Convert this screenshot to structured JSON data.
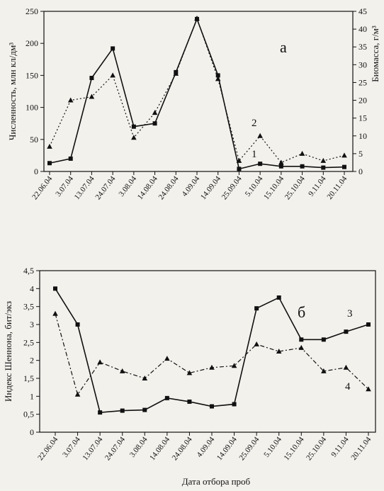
{
  "chart_data": [
    {
      "type": "line",
      "panel_label": "а",
      "categories": [
        "22.06.04",
        "3.07.04",
        "13.07.04",
        "24.07.04",
        "3.08.04",
        "14.08.04",
        "24.08.04",
        "4.09.04",
        "14.09.04",
        "25.09.04",
        "5.10.04",
        "15.10.04",
        "25.10.04",
        "9.11.04",
        "20.11.04"
      ],
      "ylabel": "Численность, млн кл/дм³",
      "y2label": "Биомасса, г/м³",
      "ylim": [
        0,
        250
      ],
      "y2lim": [
        0,
        45
      ],
      "yticks": [
        "0",
        "50",
        "100",
        "150",
        "200",
        "250"
      ],
      "y2ticks": [
        "0",
        "5",
        "10",
        "15",
        "20",
        "25",
        "30",
        "35",
        "40",
        "45"
      ],
      "series": [
        {
          "name": "1",
          "axis": "left",
          "style": "solid",
          "marker": "square",
          "values": [
            13,
            20,
            146,
            192,
            70,
            75,
            155,
            238,
            150,
            4,
            12,
            8,
            8,
            6,
            7
          ]
        },
        {
          "name": "2",
          "axis": "right",
          "style": "dotted",
          "marker": "triangle",
          "values": [
            7,
            20,
            21,
            27,
            9.5,
            16.5,
            27.5,
            43,
            26,
            3,
            10,
            2.5,
            5,
            3,
            4.5
          ]
        }
      ]
    },
    {
      "type": "line",
      "panel_label": "б",
      "categories": [
        "22.06.04",
        "3.07.04",
        "13.07.04",
        "24.07.04",
        "3.08.04",
        "14.08.04",
        "24.08.04",
        "4.09.04",
        "14.09.04",
        "25.09.04",
        "5.10.04",
        "15.10.04",
        "25.10.04",
        "9.11.04",
        "20.11.04"
      ],
      "ylabel": "Индекс Шеннона, бит/экз",
      "xlabel": "Дата отбора проб",
      "ylim": [
        0,
        4.5
      ],
      "yticks": [
        "0",
        "0,5",
        "1",
        "1,5",
        "2",
        "2,5",
        "3",
        "3,5",
        "4",
        "4,5"
      ],
      "series": [
        {
          "name": "3",
          "style": "solid",
          "marker": "square",
          "values": [
            4.0,
            3.0,
            0.55,
            0.6,
            0.62,
            0.95,
            0.85,
            0.72,
            0.78,
            3.45,
            3.75,
            2.58,
            2.58,
            2.8,
            3.0
          ]
        },
        {
          "name": "4",
          "style": "dashdot",
          "marker": "triangle",
          "values": [
            3.3,
            1.05,
            1.95,
            1.7,
            1.5,
            2.05,
            1.65,
            1.8,
            1.85,
            2.45,
            2.25,
            2.35,
            1.7,
            1.8,
            1.2
          ]
        }
      ]
    }
  ]
}
